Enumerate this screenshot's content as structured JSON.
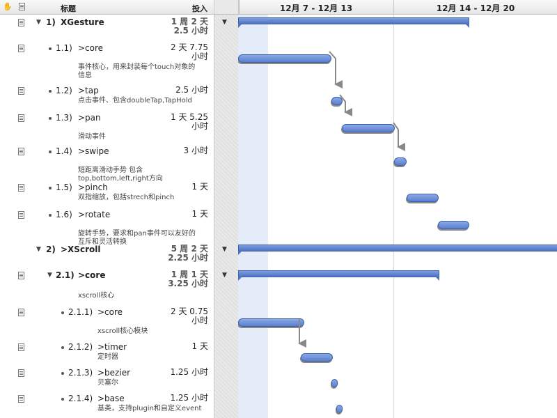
{
  "header": {
    "hand_icon": "hand-icon",
    "note_icon": "note-icon",
    "title_col": "标题",
    "effort_col": "投入",
    "weeks": [
      "12月 7 - 12月 13",
      "12月 14 - 12月 20"
    ]
  },
  "rows": [
    {
      "level": 0,
      "group": true,
      "num": "1)",
      "title": "XGesture",
      "effort": [
        "1 周 2 天",
        "2.5 小时"
      ],
      "note": ""
    },
    {
      "level": 1,
      "group": false,
      "num": "1.1)",
      "title": ">core",
      "effort": [
        "2 天 7.75",
        "小时"
      ],
      "note": "事件核心，用来封装每个touch对象的\n信息"
    },
    {
      "level": 1,
      "group": false,
      "num": "1.2)",
      "title": ">tap",
      "effort": [
        "2.5 小时"
      ],
      "note": "点击事件、包含doubleTap,TapHold"
    },
    {
      "level": 1,
      "group": false,
      "num": "1.3)",
      "title": ">pan",
      "effort": [
        "1 天 5.25",
        "小时"
      ],
      "note": "滑动事件"
    },
    {
      "level": 1,
      "group": false,
      "num": "1.4)",
      "title": ">swipe",
      "effort": [
        "3 小时"
      ],
      "note": "短距离滑动手势 包含\ntop,bottom,left,right方向"
    },
    {
      "level": 1,
      "group": false,
      "num": "1.5)",
      "title": ">pinch",
      "effort": [
        "1 天"
      ],
      "note": "双指缩放，包括strech和pinch"
    },
    {
      "level": 1,
      "group": false,
      "num": "1.6)",
      "title": ">rotate",
      "effort": [
        "1 天"
      ],
      "note": "旋转手势，要求和pan事件可以友好的\n互斥和灵活转换"
    },
    {
      "level": 0,
      "group": true,
      "num": "2)",
      "title": ">XScroll",
      "effort": [
        "5 周 2 天",
        "2.25 小时"
      ],
      "note": ""
    },
    {
      "level": 1,
      "group": true,
      "num": "2.1)",
      "title": ">core",
      "effort": [
        "1 周 1 天",
        "3.25 小时"
      ],
      "note": "xscroll核心"
    },
    {
      "level": 2,
      "group": false,
      "num": "2.1.1)",
      "title": ">core",
      "effort": [
        "2 天 0.75",
        "小时"
      ],
      "note": "xscroll核心模块"
    },
    {
      "level": 2,
      "group": false,
      "num": "2.1.2)",
      "title": ">timer",
      "effort": [
        "1 天"
      ],
      "note": "定时器"
    },
    {
      "level": 2,
      "group": false,
      "num": "2.1.3)",
      "title": ">bezier",
      "effort": [
        "1.25 小时"
      ],
      "note": "贝塞尔"
    },
    {
      "level": 2,
      "group": false,
      "num": "2.1.4)",
      "title": ">base",
      "effort": [
        "1.25 小时"
      ],
      "note": "基类，支持plugin和自定义event"
    }
  ]
}
